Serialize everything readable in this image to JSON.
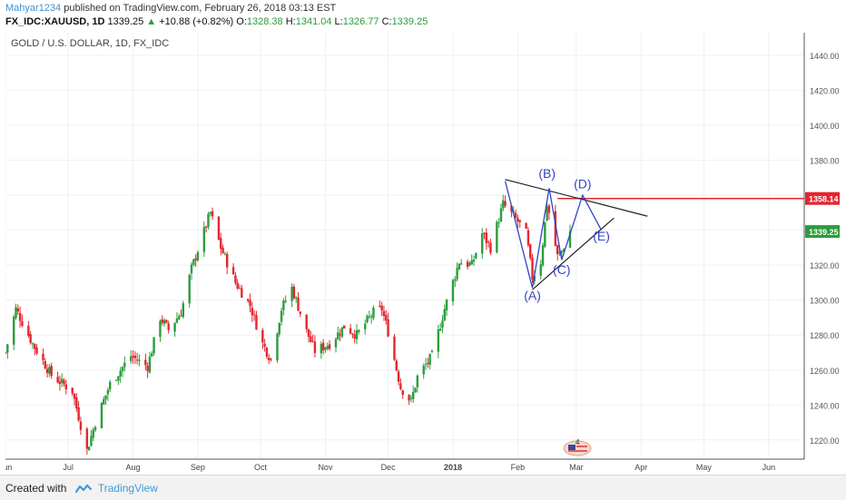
{
  "header": {
    "user": "Mahyar1234",
    "published_text": "published on TradingView.com, February 26, 2018 03:13 EST",
    "symbol": "FX_IDC:XAUUSD, 1D",
    "last": "1339.25",
    "arrow": "▲",
    "change": "+10.88 (+0.82%)",
    "o_label": "O:",
    "o_value": "1328.38",
    "h_label": "H:",
    "h_value": "1341.04",
    "l_label": "L:",
    "l_value": "1326.77",
    "c_label": "C:",
    "c_value": "1339.25"
  },
  "footer": {
    "created_with": "Created with",
    "brand": "TradingView"
  },
  "chart_data": {
    "type": "candlestick",
    "title": "GOLD / U.S. DOLLAR, 1D, FX_IDC",
    "y_ticks": [
      1220,
      1240,
      1260,
      1280,
      1300,
      1320,
      1340,
      1360,
      1380,
      1400,
      1420,
      1440
    ],
    "ylim": [
      1209,
      1453
    ],
    "x_ticks": [
      "Jun",
      "Jul",
      "Aug",
      "Sep",
      "Oct",
      "Nov",
      "Dec",
      "2018",
      "Feb",
      "Mar",
      "Apr",
      "May",
      "Jun"
    ],
    "x_tick_dates": [
      "2017-06-01",
      "2017-07-01",
      "2017-08-01",
      "2017-09-01",
      "2017-10-01",
      "2017-11-01",
      "2017-12-01",
      "2018-01-01",
      "2018-02-01",
      "2018-03-01",
      "2018-04-01",
      "2018-05-01",
      "2018-06-01"
    ],
    "xlim": [
      "2017-06-01",
      "2018-06-18"
    ],
    "grid": true,
    "colors": {
      "up": "#2a9d3c",
      "down": "#e3262e",
      "line": "#222222",
      "wave": "#3342c8",
      "resistance": "#e3262e"
    },
    "price_anchors": [
      [
        "2017-06-01",
        1270
      ],
      [
        "2017-06-06",
        1295
      ],
      [
        "2017-06-14",
        1275
      ],
      [
        "2017-06-23",
        1257
      ],
      [
        "2017-07-03",
        1248
      ],
      [
        "2017-07-10",
        1214
      ],
      [
        "2017-07-14",
        1230
      ],
      [
        "2017-07-21",
        1252
      ],
      [
        "2017-07-31",
        1268
      ],
      [
        "2017-08-08",
        1262
      ],
      [
        "2017-08-14",
        1290
      ],
      [
        "2017-08-18",
        1283
      ],
      [
        "2017-08-24",
        1293
      ],
      [
        "2017-08-29",
        1318
      ],
      [
        "2017-09-07",
        1350
      ],
      [
        "2017-09-12",
        1330
      ],
      [
        "2017-09-19",
        1310
      ],
      [
        "2017-09-26",
        1297
      ],
      [
        "2017-10-02",
        1275
      ],
      [
        "2017-10-06",
        1266
      ],
      [
        "2017-10-11",
        1295
      ],
      [
        "2017-10-16",
        1307
      ],
      [
        "2017-10-23",
        1282
      ],
      [
        "2017-10-27",
        1271
      ],
      [
        "2017-11-03",
        1275
      ],
      [
        "2017-11-10",
        1285
      ],
      [
        "2017-11-16",
        1280
      ],
      [
        "2017-11-24",
        1293
      ],
      [
        "2017-11-28",
        1295
      ],
      [
        "2017-12-01",
        1282
      ],
      [
        "2017-12-07",
        1250
      ],
      [
        "2017-12-12",
        1242
      ],
      [
        "2017-12-15",
        1256
      ],
      [
        "2017-12-22",
        1268
      ],
      [
        "2017-12-28",
        1295
      ],
      [
        "2018-01-04",
        1322
      ],
      [
        "2018-01-10",
        1320
      ],
      [
        "2018-01-15",
        1338
      ],
      [
        "2018-01-19",
        1330
      ],
      [
        "2018-01-25",
        1355
      ],
      [
        "2018-02-01",
        1345
      ],
      [
        "2018-02-05",
        1338
      ],
      [
        "2018-02-08",
        1313
      ],
      [
        "2018-02-12",
        1322
      ],
      [
        "2018-02-15",
        1355
      ],
      [
        "2018-02-16",
        1350
      ],
      [
        "2018-02-20",
        1325
      ],
      [
        "2018-02-22",
        1328
      ],
      [
        "2018-02-26",
        1339.25
      ]
    ],
    "last_price": 1339.25,
    "last_price_label": "1339.25",
    "resistance": {
      "price": 1358.14,
      "label": "1358.14",
      "from": "2018-02-20",
      "to": "2018-06-18"
    },
    "trendlines": [
      {
        "name": "upper-trendline",
        "from": [
          "2018-01-26",
          1369
        ],
        "to": [
          "2018-04-04",
          1348
        ]
      },
      {
        "name": "lower-trendline",
        "from": [
          "2018-02-08",
          1306
        ],
        "to": [
          "2018-03-19",
          1347
        ]
      }
    ],
    "wave_path": [
      [
        "2018-01-26",
        1368
      ],
      [
        "2018-02-08",
        1307
      ],
      [
        "2018-02-16",
        1364
      ],
      [
        "2018-02-22",
        1323
      ],
      [
        "2018-03-04",
        1360
      ],
      [
        "2018-03-13",
        1340
      ]
    ],
    "wave_labels": [
      {
        "text": "(A)",
        "date": "2018-02-08",
        "price": 1300
      },
      {
        "text": "(B)",
        "date": "2018-02-15",
        "price": 1370
      },
      {
        "text": "(C)",
        "date": "2018-02-22",
        "price": 1315
      },
      {
        "text": "(D)",
        "date": "2018-03-04",
        "price": 1364
      },
      {
        "text": "(E)",
        "date": "2018-03-13",
        "price": 1334
      }
    ]
  }
}
